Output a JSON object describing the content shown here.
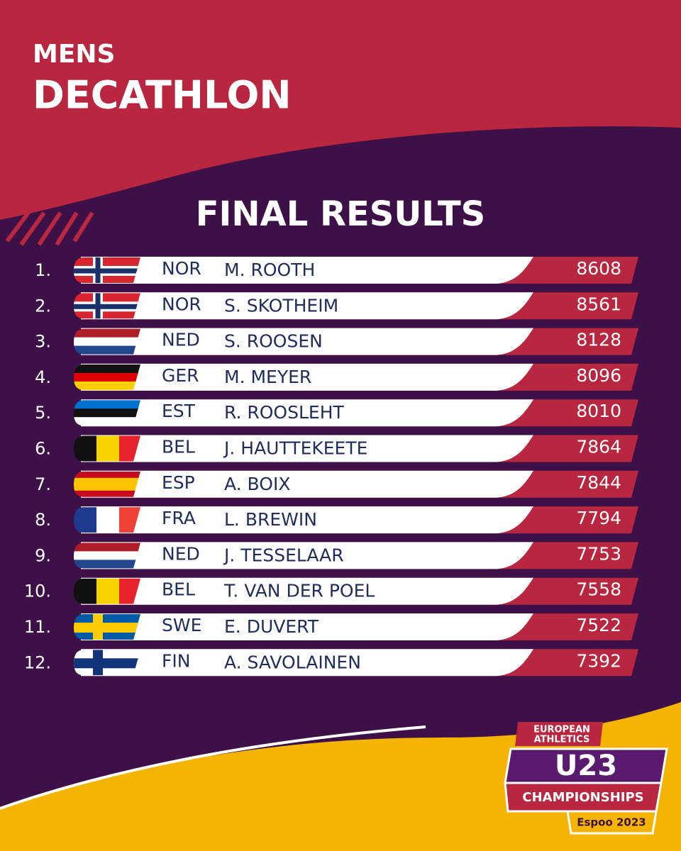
{
  "header": {
    "title_line1": "MENS",
    "title_line2": "DECATHLON",
    "subtitle": "FINAL RESULTS"
  },
  "results": [
    {
      "rank": "1.",
      "country": "NOR",
      "name": "M. ROOTH",
      "points": 8608
    },
    {
      "rank": "2.",
      "country": "NOR",
      "name": "S. SKOTHEIM",
      "points": 8561
    },
    {
      "rank": "3.",
      "country": "NED",
      "name": "S. ROOSEN",
      "points": 8128
    },
    {
      "rank": "4.",
      "country": "GER",
      "name": "M. MEYER",
      "points": 8096
    },
    {
      "rank": "5.",
      "country": "EST",
      "name": "R. ROOSLEHT",
      "points": 8010
    },
    {
      "rank": "6.",
      "country": "BEL",
      "name": "J. HAUTTEKEETE",
      "points": 7864
    },
    {
      "rank": "7.",
      "country": "ESP",
      "name": "A. BOIX",
      "points": 7844
    },
    {
      "rank": "8.",
      "country": "FRA",
      "name": "L. BREWIN",
      "points": 7794
    },
    {
      "rank": "9.",
      "country": "NED",
      "name": "J. TESSELAAR",
      "points": 7753
    },
    {
      "rank": "10.",
      "country": "BEL",
      "name": "T. VAN DER POEL",
      "points": 7558
    },
    {
      "rank": "11.",
      "country": "SWE",
      "name": "E. DUVERT",
      "points": 7522
    },
    {
      "rank": "12.",
      "country": "FIN",
      "name": "A. SAVOLAINEN",
      "points": 7392
    }
  ],
  "logo": {
    "line1": "EUROPEAN",
    "line2": "ATHLETICS",
    "badge": "U23",
    "event": "CHAMPIONSHIPS",
    "place": "Espoo 2023"
  }
}
